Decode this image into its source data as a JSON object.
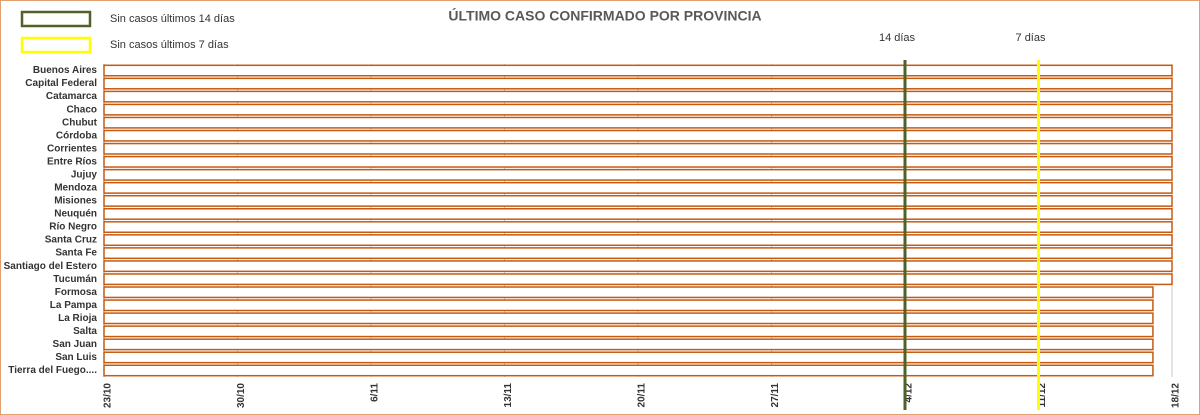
{
  "chart_data": {
    "type": "bar",
    "orientation": "horizontal",
    "title": "ÚLTIMO CASO CONFIRMADO POR PROVINCIA",
    "categories": [
      "Buenos Aires",
      "Capital Federal",
      "Catamarca",
      "Chaco",
      "Chubut",
      "Córdoba",
      "Corrientes",
      "Entre Ríos",
      "Jujuy",
      "Mendoza",
      "Misiones",
      "Neuquén",
      "Río Negro",
      "Santa Cruz",
      "Santa Fe",
      "Santiago del Estero",
      "Tucumán",
      "Formosa",
      "La Pampa",
      "La Rioja",
      "Salta",
      "San Juan",
      "San Luis",
      "Tierra del Fuego...."
    ],
    "values": [
      56,
      56,
      56,
      56,
      56,
      56,
      56,
      56,
      56,
      56,
      56,
      56,
      56,
      56,
      56,
      56,
      56,
      55,
      55,
      55,
      55,
      55,
      55,
      55
    ],
    "color": "#c55a11",
    "xlim": [
      0,
      56
    ],
    "xticks": [
      {
        "value": 0,
        "label": "23/10"
      },
      {
        "value": 7,
        "label": "30/10"
      },
      {
        "value": 14,
        "label": "6/11"
      },
      {
        "value": 21,
        "label": "13/11"
      },
      {
        "value": 28,
        "label": "20/11"
      },
      {
        "value": 35,
        "label": "27/11"
      },
      {
        "value": 42,
        "label": "4/12"
      },
      {
        "value": 49,
        "label": "11/12"
      },
      {
        "value": 56,
        "label": "18/12"
      }
    ],
    "grid": true,
    "reference_lines": [
      {
        "label": "14 días",
        "value": 42,
        "color": "#4f6228"
      },
      {
        "label": "7 días",
        "value": 49,
        "color": "#ffff00"
      }
    ],
    "legend": [
      {
        "label": "Sin casos últimos 14 días",
        "color": "#4f6228"
      },
      {
        "label": "Sin casos últimos 7 días",
        "color": "#ffff00"
      }
    ]
  }
}
